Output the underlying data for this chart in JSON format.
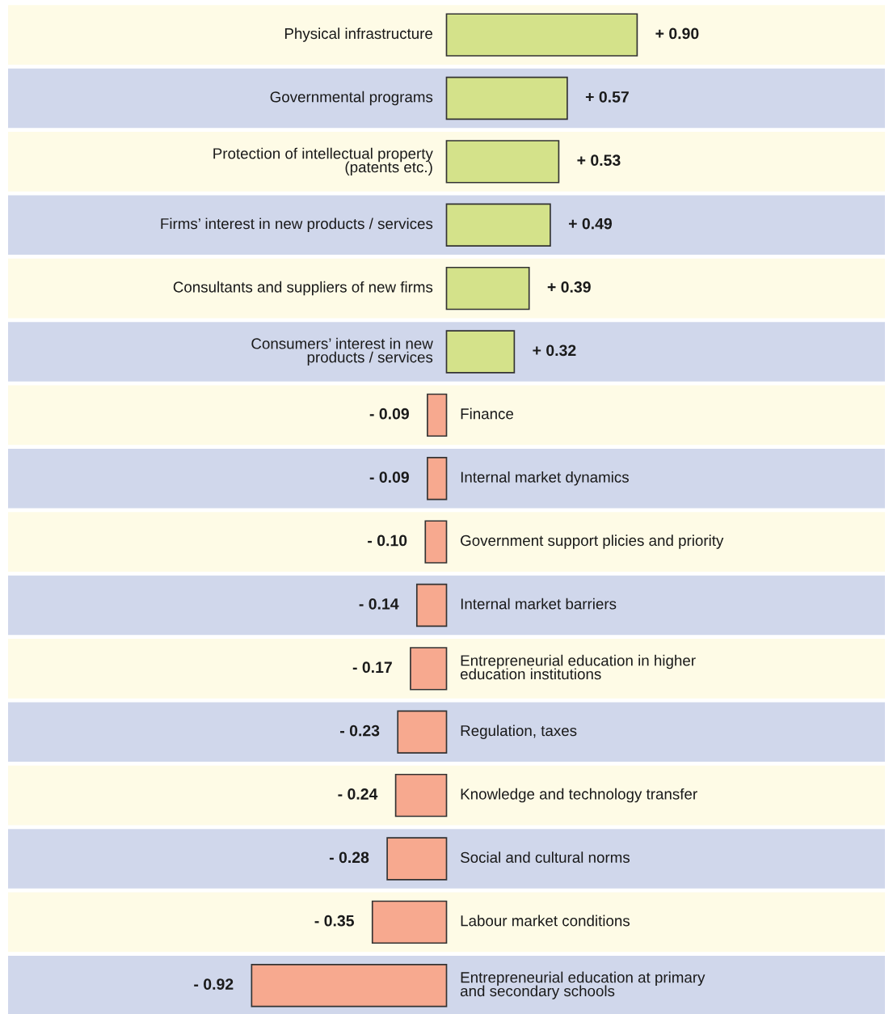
{
  "chart_data": {
    "type": "bar",
    "orientation": "horizontal",
    "categories": [
      "Physical infrastructure",
      "Governmental programs",
      "Protection of intellectual property\n(patents etc.)",
      "Firms’ interest in new products / services",
      "Consultants and suppliers of new firms",
      "Consumers’ interest in new\nproducts / services",
      "Finance",
      "Internal market dynamics",
      "Government support plicies and priority",
      "Internal market barriers",
      "Entrepreneurial education in higher\neducation institutions",
      "Regulation, taxes",
      "Knowledge and technology transfer",
      "Social and cultural norms",
      "Labour market conditions",
      "Entrepreneurial education at primary\nand secondary schools"
    ],
    "values": [
      0.9,
      0.57,
      0.53,
      0.49,
      0.39,
      0.32,
      -0.09,
      -0.09,
      -0.1,
      -0.14,
      -0.17,
      -0.23,
      -0.24,
      -0.28,
      -0.35,
      -0.92
    ],
    "colors": [
      "#d4e28a",
      "#d4e28a",
      "#d4e28a",
      "#d4e28a",
      "#d4e28a",
      "#d4e28a",
      "#f7a98f",
      "#f7a98f",
      "#f7a98f",
      "#f7a98f",
      "#f7a98f",
      "#f7a98f",
      "#f7a98f",
      "#f7a98f",
      "#f7a98f",
      "#f7a98f"
    ],
    "value_labels": [
      "+ 0.90",
      "+ 0.57",
      "+ 0.53",
      "+ 0.49",
      "+ 0.39",
      "+ 0.32",
      "- 0.09",
      "- 0.09",
      "- 0.10",
      "- 0.14",
      "- 0.17",
      "- 0.23",
      "- 0.24",
      "- 0.28",
      "- 0.35",
      "- 0.92"
    ],
    "bands": [
      {
        "axis": "y",
        "from": "Physical infrastructure",
        "to": "Physical infrastructure",
        "color": "#fefbe6"
      },
      {
        "axis": "y",
        "from": "Governmental programs",
        "to": "Governmental programs",
        "color": "#d0d7eb"
      },
      {
        "axis": "y",
        "from": "Protection of intellectual property\n(patents etc.)",
        "to": "Protection of intellectual property\n(patents etc.)",
        "color": "#fefbe6"
      },
      {
        "axis": "y",
        "from": "Firms’ interest in new products / services",
        "to": "Firms’ interest in new products / services",
        "color": "#d0d7eb"
      },
      {
        "axis": "y",
        "from": "Consultants and suppliers of new firms",
        "to": "Consultants and suppliers of new firms",
        "color": "#fefbe6"
      },
      {
        "axis": "y",
        "from": "Consumers’ interest in new\nproducts / services",
        "to": "Consumers’ interest in new\nproducts / services",
        "color": "#d0d7eb"
      },
      {
        "axis": "y",
        "from": "Finance",
        "to": "Finance",
        "color": "#fefbe6"
      },
      {
        "axis": "y",
        "from": "Internal market dynamics",
        "to": "Internal market dynamics",
        "color": "#d0d7eb"
      },
      {
        "axis": "y",
        "from": "Government support plicies and priority",
        "to": "Government support plicies and priority",
        "color": "#fefbe6"
      },
      {
        "axis": "y",
        "from": "Internal market barriers",
        "to": "Internal market barriers",
        "color": "#d0d7eb"
      },
      {
        "axis": "y",
        "from": "Entrepreneurial education in higher\neducation institutions",
        "to": "Entrepreneurial education in higher\neducation institutions",
        "color": "#fefbe6"
      },
      {
        "axis": "y",
        "from": "Regulation, taxes",
        "to": "Regulation, taxes",
        "color": "#d0d7eb"
      },
      {
        "axis": "y",
        "from": "Knowledge and technology transfer",
        "to": "Knowledge and technology transfer",
        "color": "#fefbe6"
      },
      {
        "axis": "y",
        "from": "Social and cultural norms",
        "to": "Social and cultural norms",
        "color": "#d0d7eb"
      },
      {
        "axis": "y",
        "from": "Labour market conditions",
        "to": "Labour market conditions",
        "color": "#fefbe6"
      },
      {
        "axis": "y",
        "from": "Entrepreneurial education at primary\nand secondary schools",
        "to": "Entrepreneurial education at primary\nand secondary schools",
        "color": "#d0d7eb"
      }
    ]
  }
}
